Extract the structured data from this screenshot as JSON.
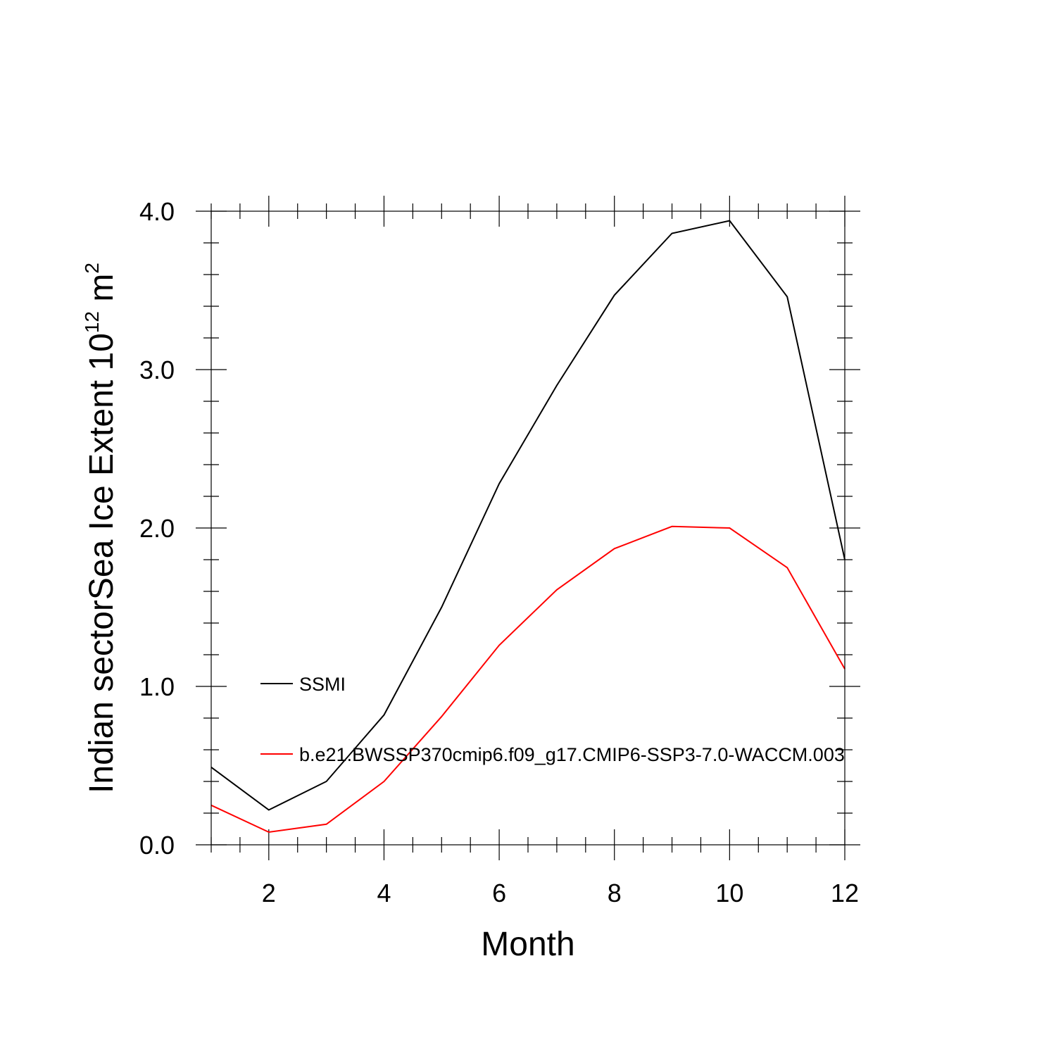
{
  "chart_data": {
    "type": "line",
    "xlabel": "Month",
    "ylabel": {
      "prefix": "Indian sectorSea Ice Extent 10",
      "superscript": "12",
      "unit": " m",
      "unit_superscript": "2"
    },
    "xlim": [
      1,
      12
    ],
    "ylim": [
      0,
      4
    ],
    "x_ticks": [
      2,
      4,
      6,
      8,
      10,
      12
    ],
    "x_tick_labels": [
      "2",
      "4",
      "6",
      "8",
      "10",
      "12"
    ],
    "y_ticks": [
      0,
      1,
      2,
      3,
      4
    ],
    "y_tick_labels": [
      "0.0",
      "1.0",
      "2.0",
      "3.0",
      "4.0"
    ],
    "x_minor_step": 0.5,
    "y_minor_step": 0.2,
    "grid": false,
    "legend_position": "middle-left",
    "x": [
      1,
      2,
      3,
      4,
      5,
      6,
      7,
      8,
      9,
      10,
      11,
      12
    ],
    "series": [
      {
        "name": "SSMI",
        "color": "#000000",
        "values": [
          0.49,
          0.22,
          0.4,
          0.82,
          1.5,
          2.28,
          2.9,
          3.47,
          3.86,
          3.94,
          3.46,
          1.8
        ]
      },
      {
        "name": "b.e21.BWSSP370cmip6.f09_g17.CMIP6-SSP3-7.0-WACCM.003",
        "color": "#ff0000",
        "values": [
          0.25,
          0.08,
          0.13,
          0.4,
          0.81,
          1.26,
          1.61,
          1.87,
          2.01,
          2.0,
          1.75,
          1.11
        ]
      }
    ]
  }
}
